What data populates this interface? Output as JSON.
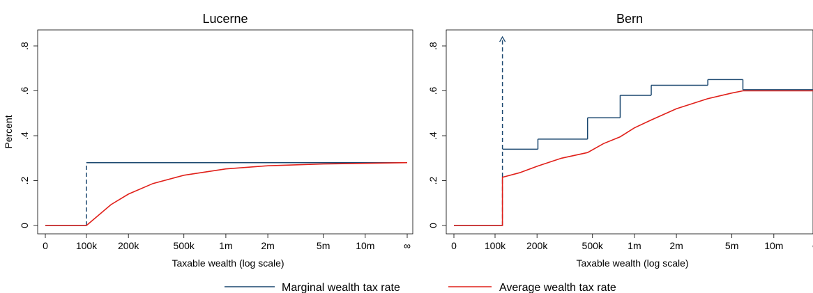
{
  "legend": {
    "items": [
      {
        "label": "Marginal wealth tax rate",
        "color": "#1a476f"
      },
      {
        "label": "Average wealth tax rate",
        "color": "#e0201a"
      }
    ]
  },
  "chart_data": [
    {
      "type": "line",
      "title": "Lucerne",
      "xlabel": "Taxable wealth (log scale)",
      "ylabel": "Percent",
      "x_scale": "log",
      "ylim": [
        0,
        0.85
      ],
      "grid": false,
      "legend": "bottom-center",
      "xticks": [
        {
          "label": "0",
          "value": 0
        },
        {
          "label": "100k",
          "value": 100000
        },
        {
          "label": "200k",
          "value": 200000
        },
        {
          "label": "500k",
          "value": 500000
        },
        {
          "label": "1m",
          "value": 1000000
        },
        {
          "label": "2m",
          "value": 2000000
        },
        {
          "label": "5m",
          "value": 5000000
        },
        {
          "label": "10m",
          "value": 10000000
        },
        {
          "label": "∞",
          "value": "inf"
        }
      ],
      "yticks": [
        {
          "label": "0",
          "value": 0
        },
        {
          "label": ".2",
          "value": 0.2
        },
        {
          "label": ".4",
          "value": 0.4
        },
        {
          "label": ".6",
          "value": 0.6
        },
        {
          "label": ".8",
          "value": 0.8
        }
      ],
      "series": [
        {
          "name": "Marginal wealth tax rate",
          "color": "#1a476f",
          "step": true,
          "jump_at": 100000,
          "points": [
            [
              0,
              0
            ],
            [
              100000,
              0
            ],
            [
              100000,
              0.28
            ],
            [
              "inf",
              0.28
            ]
          ]
        },
        {
          "name": "Average wealth tax rate",
          "color": "#e0201a",
          "points": [
            [
              0,
              0
            ],
            [
              100000,
              0
            ],
            [
              150000,
              0.093
            ],
            [
              200000,
              0.14
            ],
            [
              300000,
              0.187
            ],
            [
              500000,
              0.224
            ],
            [
              1000000,
              0.252
            ],
            [
              2000000,
              0.266
            ],
            [
              5000000,
              0.274
            ],
            [
              10000000,
              0.277
            ],
            [
              "inf",
              0.28
            ]
          ]
        }
      ]
    },
    {
      "type": "line",
      "title": "Bern",
      "xlabel": "Taxable wealth (log scale)",
      "ylabel": "",
      "x_scale": "log",
      "ylim": [
        0,
        0.85
      ],
      "grid": false,
      "legend": "bottom-center",
      "xticks": [
        {
          "label": "0",
          "value": 0
        },
        {
          "label": "100k",
          "value": 100000
        },
        {
          "label": "200k",
          "value": 200000
        },
        {
          "label": "500k",
          "value": 500000
        },
        {
          "label": "1m",
          "value": 1000000
        },
        {
          "label": "2m",
          "value": 2000000
        },
        {
          "label": "5m",
          "value": 5000000
        },
        {
          "label": "10m",
          "value": 10000000
        },
        {
          "label": "∞",
          "value": "inf"
        }
      ],
      "yticks": [
        {
          "label": "0",
          "value": 0
        },
        {
          "label": ".2",
          "value": 0.2
        },
        {
          "label": ".4",
          "value": 0.4
        },
        {
          "label": ".6",
          "value": 0.6
        },
        {
          "label": ".8",
          "value": 0.8
        }
      ],
      "series": [
        {
          "name": "Marginal wealth tax rate",
          "color": "#1a476f",
          "step": true,
          "jump_at": 113000,
          "jump_arrow_to": 0.84,
          "points": [
            [
              0,
              0
            ],
            [
              113000,
              0
            ],
            [
              113000,
              0.34
            ],
            [
              203000,
              0.34
            ],
            [
              203000,
              0.385
            ],
            [
              461000,
              0.385
            ],
            [
              461000,
              0.48
            ],
            [
              790000,
              0.48
            ],
            [
              790000,
              0.58
            ],
            [
              1320000,
              0.58
            ],
            [
              1320000,
              0.625
            ],
            [
              3360000,
              0.625
            ],
            [
              3360000,
              0.65
            ],
            [
              6000000,
              0.65
            ],
            [
              6000000,
              0.605
            ],
            [
              "inf",
              0.605
            ]
          ]
        },
        {
          "name": "Average wealth tax rate",
          "color": "#e0201a",
          "points": [
            [
              0,
              0
            ],
            [
              113000,
              0
            ],
            [
              113000,
              0.215
            ],
            [
              150000,
              0.235
            ],
            [
              203000,
              0.265
            ],
            [
              300000,
              0.3
            ],
            [
              461000,
              0.325
            ],
            [
              600000,
              0.365
            ],
            [
              790000,
              0.395
            ],
            [
              1000000,
              0.435
            ],
            [
              1320000,
              0.47
            ],
            [
              2000000,
              0.52
            ],
            [
              3360000,
              0.565
            ],
            [
              5000000,
              0.59
            ],
            [
              6000000,
              0.6
            ],
            [
              "inf",
              0.6
            ]
          ]
        }
      ]
    }
  ]
}
